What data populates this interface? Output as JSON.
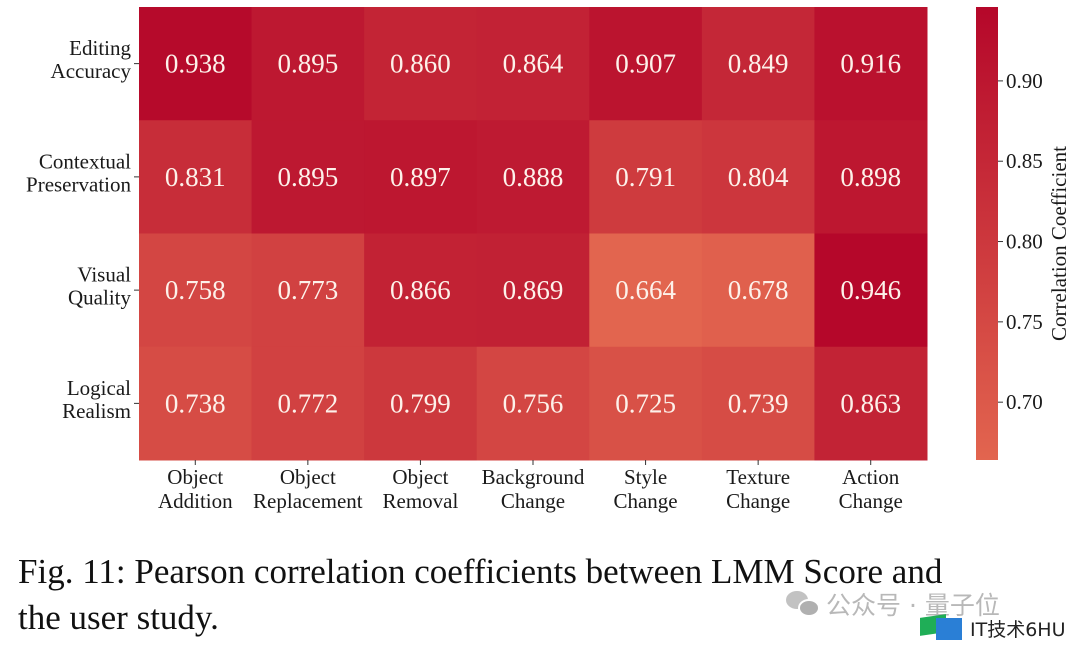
{
  "chart_data": {
    "type": "heatmap",
    "title": "",
    "xlabel": "",
    "ylabel": "",
    "rows": [
      "Editing\nAccuracy",
      "Contextual\nPreservation",
      "Visual\nQuality",
      "Logical\nRealism"
    ],
    "columns": [
      "Object\nAddition",
      "Object\nReplacement",
      "Object\nRemoval",
      "Background\nChange",
      "Style\nChange",
      "Texture\nChange",
      "Action\nChange"
    ],
    "values": [
      [
        0.938,
        0.895,
        0.86,
        0.864,
        0.907,
        0.849,
        0.916
      ],
      [
        0.831,
        0.895,
        0.897,
        0.888,
        0.791,
        0.804,
        0.898
      ],
      [
        0.758,
        0.773,
        0.866,
        0.869,
        0.664,
        0.678,
        0.946
      ],
      [
        0.738,
        0.772,
        0.799,
        0.756,
        0.725,
        0.739,
        0.863
      ]
    ],
    "value_format": "0.000",
    "colorbar": {
      "label": "Correlation Coefficient",
      "range": [
        0.664,
        0.946
      ],
      "ticks": [
        0.7,
        0.75,
        0.8,
        0.85,
        0.9
      ],
      "tick_labels": [
        "0.70",
        "0.75",
        "0.80",
        "0.85",
        "0.90"
      ],
      "color_low": "#e2654f",
      "color_high": "#b5072a",
      "placement": "right"
    },
    "grid": false
  },
  "caption": {
    "line1": "Fig. 11: Pearson correlation coefficients between LMM Score and",
    "line2": "the user study."
  },
  "watermarks": {
    "wechat": "公众号 · 量子位",
    "site": "IT技术6HU"
  }
}
